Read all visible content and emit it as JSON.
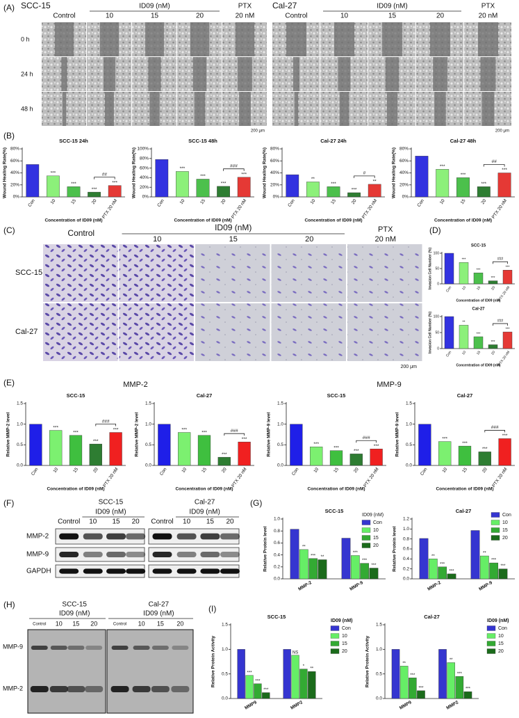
{
  "panel_labels": [
    "(A)",
    "(B)",
    "(C)",
    "(D)",
    "(E)",
    "(F)",
    "(G)",
    "(H)",
    "(I)"
  ],
  "wound": {
    "cell_lines": [
      "SCC-15",
      "Cal-27"
    ],
    "control": "Control",
    "group": "ID09 (nM)",
    "doses": [
      "10",
      "15",
      "20"
    ],
    "ptx": [
      "PTX",
      "20 nM"
    ],
    "times": [
      "0 h",
      "24 h",
      "48 h"
    ],
    "scale": "200 μm"
  },
  "invasion": {
    "cell_lines": [
      "SCC-15",
      "Cal-27"
    ],
    "control": "Control",
    "group": "ID09 (nM)",
    "doses": [
      "10",
      "15",
      "20"
    ],
    "ptx": [
      "PTX",
      "20 nM"
    ],
    "scale": "200 μm"
  },
  "mmp_titles": [
    "MMP-2",
    "MMP-9"
  ],
  "western": {
    "cell_lines": [
      "SCC-15",
      "Cal-27"
    ],
    "group": "ID09 (nM)",
    "lanes": [
      "Control",
      "10",
      "15",
      "20"
    ],
    "proteins": [
      "MMP-2",
      "MMP-9",
      "GAPDH"
    ]
  },
  "zymography": {
    "cell_lines": [
      "SCC-15",
      "Cal-27"
    ],
    "group": "ID09 (nM)",
    "lanes": [
      "Control",
      "10",
      "15",
      "20"
    ],
    "bands": [
      "MMP-9",
      "MMP-2"
    ]
  },
  "chart_data": [
    {
      "type": "bar",
      "title": "SCC-15 24h",
      "ylabel": "Wound Healing Rate(%)",
      "xlabel": "Concentration of ID09 (nM)",
      "categories": [
        "Con",
        "10",
        "15",
        "20",
        "PTX 20 nM"
      ],
      "values": [
        54,
        35,
        17,
        8,
        19
      ],
      "colors": [
        "#3232e0",
        "#8cf07a",
        "#4cc04c",
        "#2e7d32",
        "#e53935"
      ],
      "ylim": [
        0,
        80
      ],
      "yticks": [
        {
          "value": 0,
          "label": "0%"
        },
        {
          "value": 20,
          "label": "20%"
        },
        {
          "value": 40,
          "label": "40%"
        },
        {
          "value": 60,
          "label": "60%"
        },
        {
          "value": 80,
          "label": "80%"
        }
      ],
      "sig": [
        null,
        "***",
        "***",
        "***",
        "***"
      ],
      "compare": "##"
    },
    {
      "type": "bar",
      "title": "SCC-15 48h",
      "ylabel": "Wound Healing Rate(%)",
      "xlabel": "Concentration of ID09 (nM)",
      "categories": [
        "Con",
        "10",
        "15",
        "20",
        "PTX 20 nM"
      ],
      "values": [
        78,
        53,
        37,
        22,
        41
      ],
      "colors": [
        "#3232e0",
        "#8cf07a",
        "#4cc04c",
        "#2e7d32",
        "#e53935"
      ],
      "ylim": [
        0,
        100
      ],
      "yticks": [
        {
          "value": 0,
          "label": "0%"
        },
        {
          "value": 20,
          "label": "20%"
        },
        {
          "value": 40,
          "label": "40%"
        },
        {
          "value": 60,
          "label": "60%"
        },
        {
          "value": 80,
          "label": "80%"
        },
        {
          "value": 100,
          "label": "100%"
        }
      ],
      "sig": [
        null,
        "***",
        "***",
        "***",
        "***"
      ],
      "compare": "###"
    },
    {
      "type": "bar",
      "title": "Cal-27 24h",
      "ylabel": "Wound Healing Rate(%)",
      "xlabel": "Concentration of ID09 (nM)",
      "categories": [
        "Con",
        "10",
        "15",
        "20",
        "PTX 20 nM"
      ],
      "values": [
        37,
        25,
        17,
        7,
        21
      ],
      "colors": [
        "#3232e0",
        "#8cf07a",
        "#4cc04c",
        "#2e7d32",
        "#e53935"
      ],
      "ylim": [
        0,
        80
      ],
      "yticks": [
        {
          "value": 0,
          "label": "0%"
        },
        {
          "value": 20,
          "label": "20%"
        },
        {
          "value": 40,
          "label": "40%"
        },
        {
          "value": 60,
          "label": "60%"
        },
        {
          "value": 80,
          "label": "80%"
        }
      ],
      "sig": [
        null,
        "**",
        "***",
        "***",
        "**"
      ],
      "compare": "#"
    },
    {
      "type": "bar",
      "title": "Cal-27 48h",
      "ylabel": "Wound Healing Rate(%)",
      "xlabel": "Concentration of ID09 (nM)",
      "categories": [
        "Con",
        "10",
        "15",
        "20",
        "PTX 20 nM"
      ],
      "values": [
        68,
        46,
        32,
        17,
        40
      ],
      "colors": [
        "#3232e0",
        "#8cf07a",
        "#4cc04c",
        "#2e7d32",
        "#e53935"
      ],
      "ylim": [
        0,
        80
      ],
      "yticks": [
        {
          "value": 0,
          "label": "0%"
        },
        {
          "value": 20,
          "label": "20%"
        },
        {
          "value": 40,
          "label": "40%"
        },
        {
          "value": 60,
          "label": "60%"
        },
        {
          "value": 80,
          "label": "80%"
        }
      ],
      "sig": [
        null,
        "***",
        "***",
        "***",
        "***"
      ],
      "compare": "##"
    },
    {
      "type": "bar",
      "title": "SCC-15",
      "ylabel": "Invasion Cell Number (%)",
      "xlabel": "Concentration of ID09 (nM)",
      "categories": [
        "Con",
        "10",
        "15",
        "20",
        "PTX 20 nM"
      ],
      "values": [
        100,
        70,
        36,
        10,
        45
      ],
      "colors": [
        "#3232e0",
        "#8cf07a",
        "#4cc04c",
        "#2e7d32",
        "#e53935"
      ],
      "ylim": [
        0,
        100
      ],
      "yticks": [
        0,
        50,
        100
      ],
      "sig": [
        null,
        "***",
        "***",
        "***",
        "***"
      ],
      "compare": "###"
    },
    {
      "type": "bar",
      "title": "Cal-27",
      "ylabel": "Invasion Cell Number (%)",
      "xlabel": "Concentration of ID09 (nM)",
      "categories": [
        "Con",
        "10",
        "15",
        "20",
        "PTX 20 nM"
      ],
      "values": [
        100,
        73,
        37,
        12,
        52
      ],
      "colors": [
        "#3232e0",
        "#8cf07a",
        "#4cc04c",
        "#2e7d32",
        "#e53935"
      ],
      "ylim": [
        0,
        100
      ],
      "yticks": [
        0,
        50,
        100
      ],
      "sig": [
        null,
        "**",
        "***",
        "***",
        "***"
      ],
      "compare": "###"
    },
    {
      "type": "bar",
      "title": "SCC-15",
      "ylabel": "Relative MMP-2 level",
      "xlabel": "Concentration of ID09 (nM)",
      "categories": [
        "Con",
        "10",
        "15",
        "20",
        "PTX 20 nM"
      ],
      "values": [
        1,
        0.85,
        0.73,
        0.52,
        0.8
      ],
      "colors": [
        "#1f1fe8",
        "#7cf070",
        "#3fbf3f",
        "#2e7d32",
        "#f02020"
      ],
      "ylim": [
        0,
        1.5
      ],
      "yticks": [
        {
          "value": 0,
          "label": "0.0"
        },
        0.5,
        {
          "value": 1,
          "label": "1.0"
        },
        1.5
      ],
      "sig": [
        null,
        "***",
        "***",
        "***",
        "***"
      ],
      "compare": "###"
    },
    {
      "type": "bar",
      "title": "Cal-27",
      "ylabel": "Relative MMP-2 level",
      "xlabel": "Concentration of ID09 (nM)",
      "categories": [
        "Con",
        "10",
        "15",
        "20",
        "PTX 20 nM"
      ],
      "values": [
        1,
        0.8,
        0.73,
        0.2,
        0.57
      ],
      "colors": [
        "#1f1fe8",
        "#7cf070",
        "#3fbf3f",
        "#2e7d32",
        "#f02020"
      ],
      "ylim": [
        0,
        1.5
      ],
      "yticks": [
        {
          "value": 0,
          "label": "0.0"
        },
        0.5,
        {
          "value": 1,
          "label": "1.0"
        },
        1.5
      ],
      "sig": [
        null,
        "***",
        "***",
        "***",
        "***"
      ],
      "compare": "###"
    },
    {
      "type": "bar",
      "title": "SCC-15",
      "ylabel": "Relative MMP-9 level",
      "xlabel": "Concentration of ID09 (nM)",
      "categories": [
        "Con",
        "10",
        "15",
        "20",
        "PTX 20 nM"
      ],
      "values": [
        1,
        0.45,
        0.36,
        0.28,
        0.4
      ],
      "colors": [
        "#1f1fe8",
        "#7cf070",
        "#3fbf3f",
        "#2e7d32",
        "#f02020"
      ],
      "ylim": [
        0,
        1.5
      ],
      "yticks": [
        {
          "value": 0,
          "label": "0.0"
        },
        0.5,
        {
          "value": 1,
          "label": "1.0"
        },
        1.5
      ],
      "sig": [
        null,
        "***",
        "***",
        "***",
        "***"
      ],
      "compare": "###"
    },
    {
      "type": "bar",
      "title": "Cal-27",
      "ylabel": "Relative MMP-9 level",
      "xlabel": "Concentration of ID09 (nM)",
      "categories": [
        "Con",
        "10",
        "15",
        "20",
        "PTX 20 nM"
      ],
      "values": [
        1,
        0.58,
        0.47,
        0.33,
        0.65
      ],
      "colors": [
        "#1f1fe8",
        "#7cf070",
        "#3fbf3f",
        "#2e7d32",
        "#f02020"
      ],
      "ylim": [
        0,
        1.5
      ],
      "yticks": [
        {
          "value": 0,
          "label": "0.0"
        },
        0.5,
        {
          "value": 1,
          "label": "1.0"
        },
        1.5
      ],
      "sig": [
        null,
        "***",
        "***",
        "***",
        "***"
      ],
      "compare": "###"
    },
    {
      "type": "grouped_bar",
      "title": "SCC-15",
      "ylabel": "Relative Protein level",
      "categories": [
        "MMP-2",
        "MMP-9"
      ],
      "legend": "upper right",
      "legend_title": "ID09 (nM)",
      "ylim": [
        0,
        1.0
      ],
      "yticks": [
        {
          "value": 0,
          "label": "0.0"
        },
        0.2,
        0.4,
        0.6,
        0.8,
        {
          "value": 1,
          "label": "1.0"
        }
      ],
      "series": [
        {
          "name": "Con",
          "color": "#3535d0",
          "values": [
            0.83,
            0.68
          ]
        },
        {
          "name": "10",
          "color": "#66ee66",
          "values": [
            0.49,
            0.39
          ],
          "sig": [
            "**",
            "***"
          ]
        },
        {
          "name": "15",
          "color": "#33aa33",
          "values": [
            0.34,
            0.26
          ],
          "sig": [
            "***",
            "***"
          ]
        },
        {
          "name": "20",
          "color": "#1b6b1b",
          "values": [
            0.32,
            0.18
          ],
          "sig": [
            "**",
            "***"
          ]
        }
      ]
    },
    {
      "type": "grouped_bar",
      "title": "Cal-27",
      "ylabel": "Relative Protein level",
      "categories": [
        "MMP-2",
        "MMP-9"
      ],
      "legend": "upper right",
      "ylim": [
        0,
        1.2
      ],
      "yticks": [
        {
          "value": 0,
          "label": "0.0"
        },
        0.2,
        0.4,
        0.6,
        0.8,
        {
          "value": 1,
          "label": "1.0"
        },
        1.2
      ],
      "series": [
        {
          "name": "Con",
          "color": "#3535d0",
          "values": [
            0.81,
            0.97
          ]
        },
        {
          "name": "10",
          "color": "#66ee66",
          "values": [
            0.4,
            0.46
          ],
          "sig": [
            "**",
            "**"
          ]
        },
        {
          "name": "15",
          "color": "#33aa33",
          "values": [
            0.24,
            0.32
          ],
          "sig": [
            "***",
            "***"
          ]
        },
        {
          "name": "20",
          "color": "#1b6b1b",
          "values": [
            0.1,
            0.2
          ],
          "sig": [
            "***",
            "***"
          ]
        }
      ]
    },
    {
      "type": "grouped_bar",
      "title": "SCC-15",
      "ylabel": "Relative Protein Activity",
      "categories": [
        "MMP9",
        "MMP2"
      ],
      "legend": "right",
      "legend_title": "ID09 (nM)",
      "ylim": [
        0,
        1.5
      ],
      "yticks": [
        {
          "value": 0,
          "label": "0.0"
        },
        0.5,
        {
          "value": 1,
          "label": "1.0"
        },
        1.5
      ],
      "series": [
        {
          "name": "Con",
          "color": "#3535d0",
          "values": [
            1.0,
            1.0
          ]
        },
        {
          "name": "10",
          "color": "#66ee66",
          "values": [
            0.47,
            0.88
          ],
          "sig": [
            "***",
            "NS"
          ]
        },
        {
          "name": "15",
          "color": "#33aa33",
          "values": [
            0.3,
            0.6
          ],
          "sig": [
            "***",
            "*"
          ]
        },
        {
          "name": "20",
          "color": "#1b6b1b",
          "values": [
            0.12,
            0.55
          ],
          "sig": [
            "***",
            "**"
          ]
        }
      ]
    },
    {
      "type": "grouped_bar",
      "title": "Cal-27",
      "ylabel": "Relative Protein Activity",
      "categories": [
        "MMP9",
        "MMP2"
      ],
      "legend": "right",
      "legend_title": "ID09 (nM)",
      "ylim": [
        0,
        1.5
      ],
      "yticks": [
        {
          "value": 0,
          "label": "0.0"
        },
        0.5,
        {
          "value": 1,
          "label": "1.0"
        },
        1.5
      ],
      "series": [
        {
          "name": "Con",
          "color": "#3535d0",
          "values": [
            1.0,
            1.0
          ]
        },
        {
          "name": "10",
          "color": "#66ee66",
          "values": [
            0.66,
            0.73
          ],
          "sig": [
            "**",
            "**"
          ]
        },
        {
          "name": "15",
          "color": "#33aa33",
          "values": [
            0.42,
            0.45
          ],
          "sig": [
            "***",
            "***"
          ]
        },
        {
          "name": "20",
          "color": "#1b6b1b",
          "values": [
            0.16,
            0.14
          ],
          "sig": [
            "***",
            "***"
          ]
        }
      ]
    }
  ]
}
